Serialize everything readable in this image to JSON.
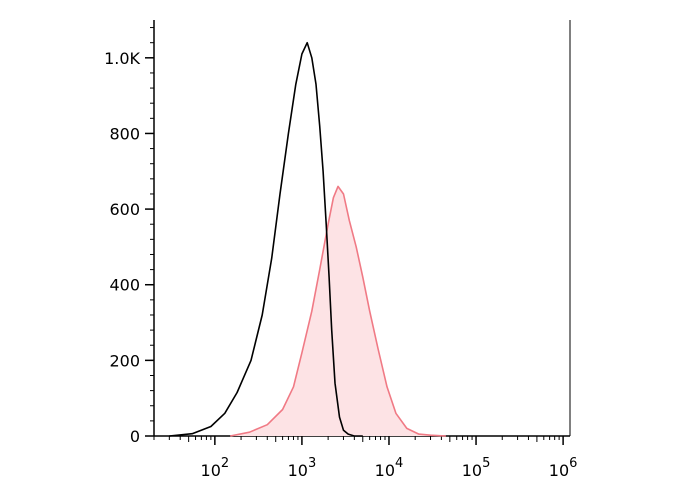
{
  "chart_data": {
    "type": "area",
    "title": "",
    "xlabel": "",
    "ylabel": "",
    "x_scale": "log",
    "xlim": [
      20,
      1200000
    ],
    "ylim": [
      0,
      1100
    ],
    "y_ticks": [
      {
        "value": 0,
        "label": "0"
      },
      {
        "value": 200,
        "label": "200"
      },
      {
        "value": 400,
        "label": "400"
      },
      {
        "value": 600,
        "label": "600"
      },
      {
        "value": 800,
        "label": "800"
      },
      {
        "value": 1000,
        "label": "1.0K"
      }
    ],
    "x_ticks": [
      {
        "value": 100,
        "base": "10",
        "exp": "2"
      },
      {
        "value": 1000,
        "base": "10",
        "exp": "3"
      },
      {
        "value": 10000,
        "base": "10",
        "exp": "4"
      },
      {
        "value": 100000,
        "base": "10",
        "exp": "5"
      },
      {
        "value": 1000000,
        "base": "10",
        "exp": "6"
      }
    ],
    "grid": false,
    "series": [
      {
        "color": "#000000",
        "fill": "none",
        "x": [
          30,
          55,
          90,
          130,
          180,
          260,
          350,
          450,
          560,
          700,
          850,
          1000,
          1150,
          1300,
          1450,
          1600,
          1750,
          1900,
          2050,
          2200,
          2400,
          2700,
          3000,
          3400,
          4000,
          5000
        ],
        "y": [
          0,
          6,
          25,
          60,
          115,
          200,
          320,
          470,
          640,
          800,
          930,
          1010,
          1040,
          1000,
          930,
          820,
          700,
          560,
          420,
          280,
          140,
          50,
          15,
          5,
          0,
          0
        ]
      },
      {
        "color": "#f07a85",
        "fill": "#fde3e5",
        "x": [
          150,
          250,
          400,
          600,
          800,
          1000,
          1300,
          1600,
          2000,
          2300,
          2600,
          3000,
          3500,
          4200,
          5000,
          6000,
          7500,
          9500,
          12000,
          16000,
          22000,
          30000,
          45000
        ],
        "y": [
          0,
          10,
          30,
          70,
          130,
          220,
          330,
          440,
          560,
          630,
          660,
          640,
          570,
          500,
          420,
          330,
          230,
          130,
          60,
          20,
          5,
          2,
          0
        ]
      }
    ]
  }
}
